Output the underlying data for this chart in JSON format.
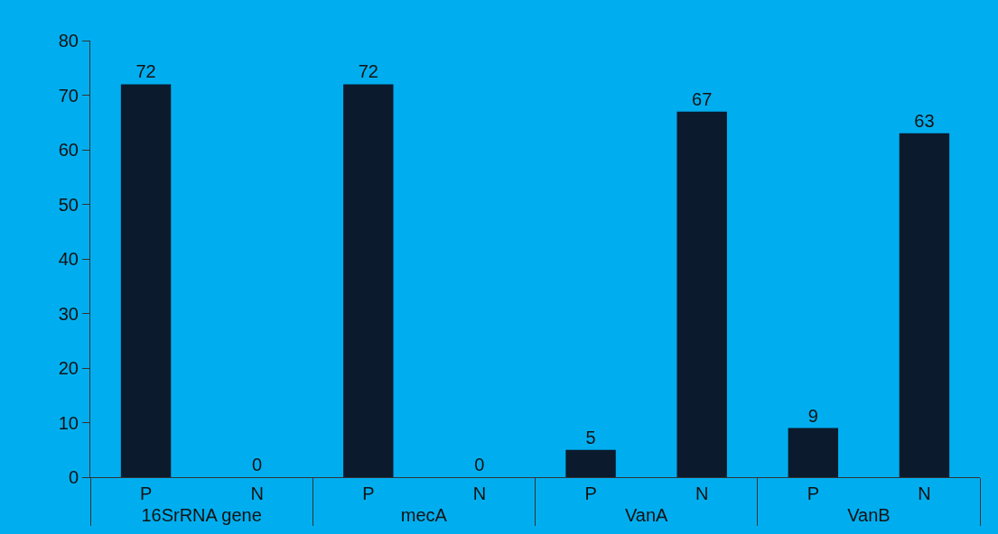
{
  "chart_data": {
    "type": "bar",
    "categories": [
      "P",
      "N",
      "P",
      "N",
      "P",
      "N",
      "P",
      "N"
    ],
    "annotations": [
      "16SrRNA gene",
      "mecA",
      "VanA",
      "VanB"
    ],
    "values": [
      72,
      0,
      72,
      0,
      5,
      67,
      9,
      63
    ],
    "color": "#0b1a2c",
    "data_labels": true,
    "grid": false,
    "ylim": [
      0,
      80
    ],
    "yticks": [
      0,
      10,
      20,
      30,
      40,
      50,
      60,
      70,
      80
    ]
  }
}
